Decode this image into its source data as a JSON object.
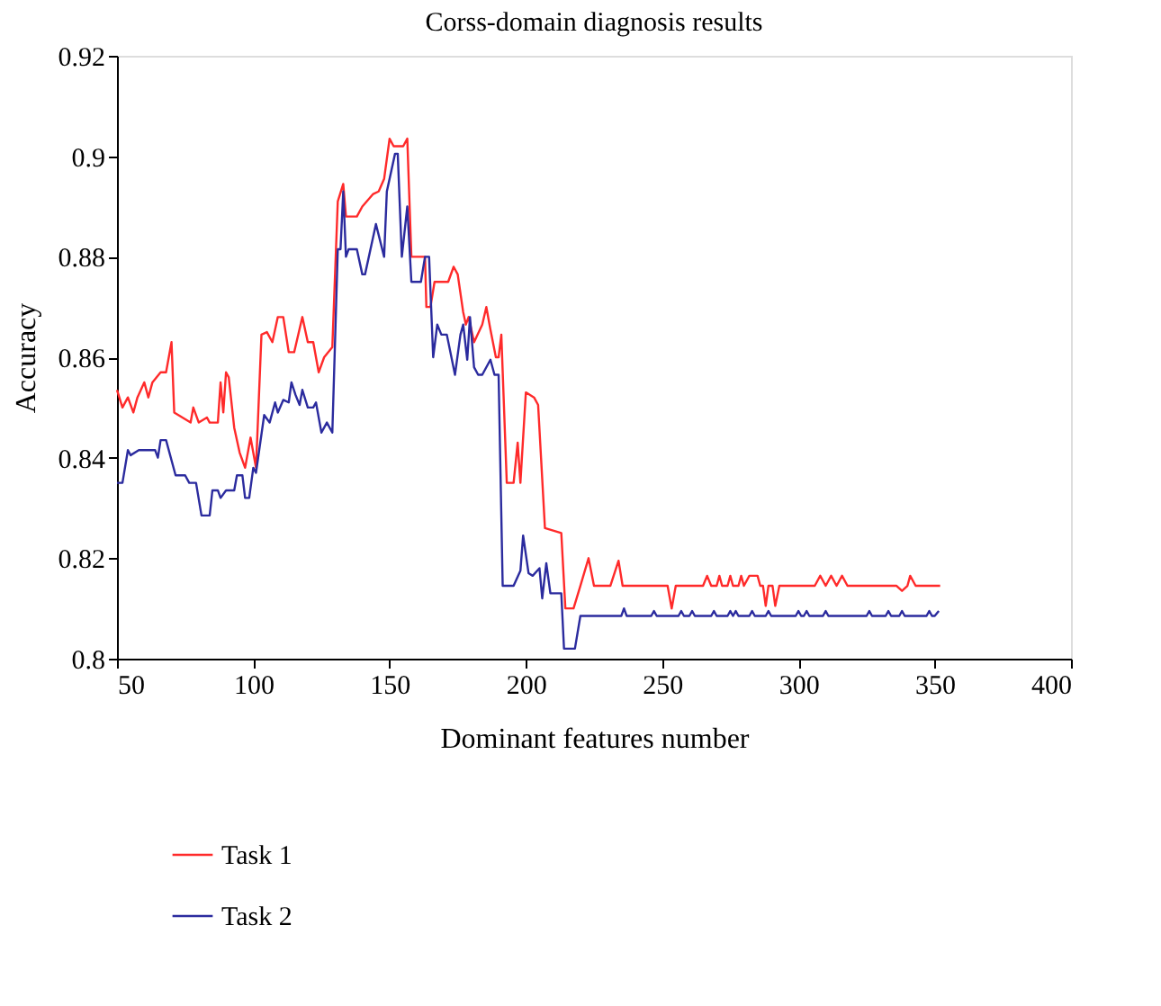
{
  "chart_data": {
    "type": "line",
    "title": "Corss-domain diagnosis results",
    "xlabel": "Dominant features number",
    "ylabel": "Accuracy",
    "xlim": [
      50,
      400
    ],
    "xticks": [
      50,
      100,
      150,
      200,
      250,
      300,
      350,
      400
    ],
    "ylim": [
      0.8,
      0.92
    ],
    "yticks": [
      {
        "value": 0.8,
        "label": "0.8"
      },
      0.82,
      0.84,
      0.86,
      0.88,
      {
        "value": 0.9,
        "label": "0.9"
      },
      0.92
    ],
    "grid": false,
    "legend": "bottom left",
    "marker": "none",
    "line_style": "solid",
    "series": [
      {
        "name": "Task 1",
        "color": "#ff2a2a",
        "x": [
          50,
          52,
          54,
          56,
          57.5,
          60,
          61.5,
          63,
          66,
          68,
          70,
          71,
          77,
          78,
          80,
          83,
          84,
          87,
          88,
          89,
          90,
          91,
          93,
          95,
          97,
          99,
          101,
          103,
          105,
          107,
          109,
          111,
          113,
          115,
          118,
          120,
          122,
          124,
          126,
          129,
          131,
          133,
          134,
          138,
          140,
          144,
          146,
          148,
          150,
          151.5,
          155,
          156.5,
          158,
          163,
          163.5,
          165,
          166.5,
          171.5,
          173.5,
          175,
          177,
          178,
          179,
          181,
          184,
          185.5,
          187,
          189,
          190,
          191,
          193,
          195.5,
          197,
          198,
          200,
          203,
          204.5,
          207,
          213,
          214.5,
          217.5,
          220,
          223,
          225,
          231,
          234,
          235.5,
          252,
          253.5,
          255,
          265,
          266.5,
          268,
          270,
          271,
          272,
          274,
          275,
          276,
          278,
          279,
          280,
          282,
          285,
          286,
          287,
          288,
          289,
          290.5,
          291.5,
          293,
          306,
          308,
          310,
          312,
          314,
          316,
          318,
          336,
          338,
          340,
          341,
          343,
          352
        ],
        "values": [
          0.8535,
          0.85,
          0.852,
          0.849,
          0.852,
          0.855,
          0.852,
          0.855,
          0.857,
          0.857,
          0.863,
          0.849,
          0.847,
          0.85,
          0.847,
          0.848,
          0.847,
          0.847,
          0.855,
          0.849,
          0.857,
          0.856,
          0.846,
          0.841,
          0.838,
          0.844,
          0.838,
          0.8645,
          0.865,
          0.863,
          0.868,
          0.868,
          0.861,
          0.861,
          0.868,
          0.863,
          0.863,
          0.857,
          0.86,
          0.862,
          0.891,
          0.8945,
          0.888,
          0.888,
          0.89,
          0.8925,
          0.893,
          0.8955,
          0.9035,
          0.902,
          0.902,
          0.9035,
          0.88,
          0.88,
          0.87,
          0.87,
          0.875,
          0.875,
          0.878,
          0.8765,
          0.869,
          0.8665,
          0.868,
          0.863,
          0.8665,
          0.87,
          0.8655,
          0.86,
          0.86,
          0.8645,
          0.835,
          0.835,
          0.843,
          0.835,
          0.853,
          0.852,
          0.8505,
          0.826,
          0.825,
          0.81,
          0.81,
          0.8145,
          0.82,
          0.8145,
          0.8145,
          0.8195,
          0.8145,
          0.8145,
          0.81,
          0.8145,
          0.8145,
          0.8165,
          0.8145,
          0.8145,
          0.8165,
          0.8145,
          0.8145,
          0.8165,
          0.8145,
          0.8145,
          0.8165,
          0.8145,
          0.8165,
          0.8165,
          0.8145,
          0.8145,
          0.8105,
          0.8145,
          0.8145,
          0.8105,
          0.8145,
          0.8145,
          0.8165,
          0.8145,
          0.8165,
          0.8145,
          0.8165,
          0.8145,
          0.8145,
          0.8135,
          0.8145,
          0.8165,
          0.8145,
          0.8145
        ]
      },
      {
        "name": "Task 2",
        "color": "#2b2b9e",
        "x": [
          50,
          52,
          54,
          55,
          58,
          64,
          65,
          66,
          68,
          70,
          71.5,
          75,
          76.5,
          79,
          81,
          84,
          85,
          87,
          88,
          90,
          93,
          94,
          96,
          97,
          98.5,
          100,
          101,
          104,
          106,
          108,
          109,
          111,
          113,
          114,
          115.5,
          117,
          118,
          120,
          122,
          123,
          125,
          127,
          129,
          131,
          132,
          133,
          134,
          135,
          138,
          140,
          141,
          145,
          148,
          149,
          152,
          153,
          154.5,
          156.5,
          158,
          161.5,
          163,
          164.5,
          166,
          167.5,
          169,
          171,
          174,
          176,
          177,
          178.5,
          179.5,
          181,
          182.5,
          184,
          187,
          188.5,
          190,
          191.5,
          195.5,
          198,
          199,
          201,
          202.5,
          205,
          206,
          207.5,
          209,
          213,
          214,
          218,
          220,
          235,
          236,
          237,
          246,
          247,
          248,
          256,
          257,
          258,
          260,
          261,
          262,
          268,
          269,
          270,
          274,
          275,
          276,
          277,
          278,
          282,
          283,
          284,
          288,
          289,
          290,
          299,
          300,
          301,
          302,
          303,
          304,
          309,
          310,
          311,
          325,
          326,
          327,
          332,
          333,
          334,
          337,
          338,
          339,
          347,
          348,
          349,
          350,
          351.5
        ],
        "values": [
          0.835,
          0.835,
          0.8415,
          0.8405,
          0.8415,
          0.8415,
          0.84,
          0.8435,
          0.8435,
          0.8395,
          0.8365,
          0.8365,
          0.835,
          0.835,
          0.8285,
          0.8285,
          0.8335,
          0.8335,
          0.832,
          0.8335,
          0.8335,
          0.8365,
          0.8365,
          0.832,
          0.832,
          0.838,
          0.837,
          0.8485,
          0.847,
          0.851,
          0.849,
          0.8515,
          0.851,
          0.855,
          0.8525,
          0.8505,
          0.8535,
          0.85,
          0.85,
          0.851,
          0.845,
          0.847,
          0.845,
          0.8815,
          0.8815,
          0.893,
          0.88,
          0.8815,
          0.8815,
          0.8765,
          0.8765,
          0.8865,
          0.88,
          0.893,
          0.9005,
          0.9005,
          0.88,
          0.89,
          0.875,
          0.875,
          0.88,
          0.88,
          0.86,
          0.8665,
          0.8645,
          0.8645,
          0.8565,
          0.8645,
          0.8665,
          0.8595,
          0.868,
          0.858,
          0.8565,
          0.8565,
          0.8595,
          0.8565,
          0.8565,
          0.8145,
          0.8145,
          0.8175,
          0.8245,
          0.817,
          0.8165,
          0.818,
          0.812,
          0.819,
          0.813,
          0.813,
          0.802,
          0.802,
          0.8085,
          0.8085,
          0.81,
          0.8085,
          0.8085,
          0.8095,
          0.8085,
          0.8085,
          0.8095,
          0.8085,
          0.8085,
          0.8095,
          0.8085,
          0.8085,
          0.8095,
          0.8085,
          0.8085,
          0.8095,
          0.8085,
          0.8095,
          0.8085,
          0.8085,
          0.8095,
          0.8085,
          0.8085,
          0.8095,
          0.8085,
          0.8085,
          0.8095,
          0.8085,
          0.8085,
          0.8095,
          0.8085,
          0.8085,
          0.8095,
          0.8085,
          0.8085,
          0.8095,
          0.8085,
          0.8085,
          0.8095,
          0.8085,
          0.8085,
          0.8095,
          0.8085,
          0.8085,
          0.8095,
          0.8085,
          0.8085,
          0.8095
        ]
      }
    ]
  }
}
